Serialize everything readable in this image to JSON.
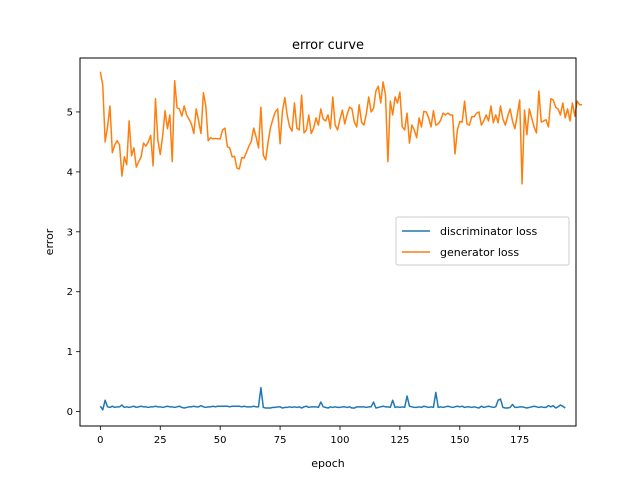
{
  "chart_data": {
    "type": "line",
    "title": "error curve",
    "xlabel": "epoch",
    "ylabel": "error",
    "xlim": [
      -8.5,
      198.5
    ],
    "ylim": [
      -0.24,
      5.9
    ],
    "xticks": [
      0,
      25,
      50,
      75,
      100,
      125,
      150,
      175
    ],
    "yticks": [
      0,
      1,
      2,
      3,
      4,
      5
    ],
    "grid": false,
    "legend": "center-right",
    "series": [
      {
        "name": "discriminator loss",
        "color": "#1f77b4",
        "x_start": 0,
        "values": [
          0.09,
          0.03,
          0.19,
          0.08,
          0.07,
          0.09,
          0.07,
          0.08,
          0.08,
          0.11,
          0.07,
          0.08,
          0.07,
          0.08,
          0.09,
          0.07,
          0.08,
          0.09,
          0.08,
          0.08,
          0.07,
          0.08,
          0.08,
          0.09,
          0.08,
          0.08,
          0.07,
          0.08,
          0.09,
          0.08,
          0.08,
          0.07,
          0.08,
          0.09,
          0.07,
          0.06,
          0.07,
          0.08,
          0.08,
          0.09,
          0.08,
          0.08,
          0.1,
          0.08,
          0.07,
          0.08,
          0.08,
          0.09,
          0.08,
          0.09,
          0.09,
          0.09,
          0.09,
          0.09,
          0.08,
          0.09,
          0.09,
          0.09,
          0.09,
          0.08,
          0.09,
          0.08,
          0.08,
          0.08,
          0.09,
          0.08,
          0.08,
          0.4,
          0.07,
          0.06,
          0.06,
          0.06,
          0.07,
          0.07,
          0.08,
          0.08,
          0.06,
          0.07,
          0.07,
          0.08,
          0.07,
          0.08,
          0.07,
          0.08,
          0.06,
          0.08,
          0.09,
          0.07,
          0.08,
          0.08,
          0.08,
          0.07,
          0.16,
          0.08,
          0.07,
          0.06,
          0.08,
          0.07,
          0.08,
          0.07,
          0.07,
          0.08,
          0.08,
          0.07,
          0.08,
          0.06,
          0.06,
          0.08,
          0.08,
          0.08,
          0.08,
          0.07,
          0.08,
          0.08,
          0.16,
          0.06,
          0.07,
          0.08,
          0.09,
          0.08,
          0.08,
          0.07,
          0.19,
          0.07,
          0.08,
          0.07,
          0.08,
          0.07,
          0.26,
          0.09,
          0.08,
          0.07,
          0.07,
          0.08,
          0.07,
          0.09,
          0.08,
          0.07,
          0.08,
          0.07,
          0.32,
          0.07,
          0.08,
          0.07,
          0.08,
          0.09,
          0.08,
          0.07,
          0.08,
          0.09,
          0.08,
          0.09,
          0.07,
          0.08,
          0.08,
          0.07,
          0.08,
          0.07,
          0.06,
          0.09,
          0.07,
          0.08,
          0.09,
          0.08,
          0.07,
          0.08,
          0.19,
          0.21,
          0.07,
          0.06,
          0.06,
          0.07,
          0.12,
          0.07,
          0.07,
          0.08,
          0.08,
          0.07,
          0.06,
          0.07,
          0.08,
          0.09,
          0.08,
          0.07,
          0.08,
          0.07,
          0.07,
          0.1,
          0.08,
          0.1,
          0.06,
          0.08,
          0.11,
          0.09,
          0.06
        ]
      },
      {
        "name": "generator loss",
        "color": "#ff7f0e",
        "x_start": 0,
        "values": [
          5.67,
          5.45,
          4.5,
          4.75,
          5.1,
          4.32,
          4.45,
          4.52,
          4.45,
          3.93,
          4.25,
          4.12,
          4.85,
          4.27,
          4.4,
          4.08,
          4.17,
          4.25,
          4.48,
          4.43,
          4.5,
          4.61,
          4.1,
          5.22,
          4.53,
          4.29,
          4.6,
          5.02,
          4.72,
          4.95,
          4.17,
          5.52,
          5.07,
          5.05,
          4.93,
          5.1,
          4.95,
          4.88,
          4.8,
          4.64,
          5.05,
          4.85,
          4.64,
          5.32,
          5.1,
          4.52,
          4.57,
          4.55,
          4.56,
          4.55,
          4.55,
          4.7,
          4.73,
          4.42,
          4.4,
          4.25,
          4.26,
          4.06,
          4.05,
          4.24,
          4.23,
          4.33,
          4.43,
          4.51,
          4.73,
          4.58,
          4.4,
          5.08,
          4.28,
          4.2,
          4.5,
          4.74,
          4.88,
          5.0,
          5.05,
          4.47,
          5.02,
          5.24,
          4.94,
          4.75,
          4.68,
          5.15,
          4.73,
          4.7,
          5.28,
          4.65,
          4.7,
          4.95,
          4.64,
          4.73,
          4.9,
          4.78,
          5.05,
          4.88,
          4.85,
          4.95,
          4.72,
          5.25,
          4.78,
          4.7,
          4.88,
          5.03,
          4.8,
          4.96,
          5.08,
          5.05,
          4.83,
          4.75,
          5.12,
          4.83,
          4.78,
          4.97,
          5.25,
          5.0,
          5.06,
          5.35,
          5.43,
          5.15,
          5.5,
          5.28,
          4.17,
          5.18,
          4.95,
          5.25,
          5.15,
          5.33,
          4.75,
          4.7,
          4.98,
          4.48,
          4.78,
          4.7,
          4.57,
          4.9,
          4.75,
          5.01,
          5.0,
          4.9,
          4.75,
          5.02,
          4.78,
          4.8,
          4.86,
          4.98,
          4.95,
          4.98,
          4.95,
          4.95,
          4.3,
          4.7,
          4.84,
          4.83,
          5.18,
          4.8,
          4.78,
          4.92,
          4.92,
          4.98,
          5.0,
          4.78,
          4.85,
          4.95,
          4.85,
          5.1,
          4.82,
          4.95,
          4.82,
          5.1,
          4.88,
          4.78,
          4.93,
          5.05,
          4.85,
          4.72,
          4.95,
          5.2,
          3.8,
          5.03,
          4.62,
          5.05,
          4.9,
          4.75,
          4.65,
          5.35,
          4.83,
          4.85,
          4.87,
          4.75,
          5.22,
          5.2,
          5.08,
          5.05,
          4.95,
          5.15,
          4.9,
          5.05,
          4.85,
          5.15,
          4.93,
          5.18,
          5.12,
          5.12
        ]
      }
    ]
  }
}
